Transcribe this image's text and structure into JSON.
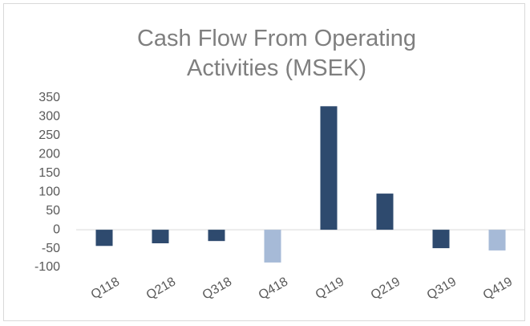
{
  "chart_data": {
    "type": "bar",
    "title": "Cash Flow From Operating Activities (MSEK)",
    "categories": [
      "Q118",
      "Q218",
      "Q318",
      "Q418",
      "Q119",
      "Q219",
      "Q319",
      "Q419"
    ],
    "values": [
      -43,
      -36,
      -30,
      -87,
      328,
      96,
      -49,
      -55
    ],
    "colors": [
      "#2e4a6e",
      "#2e4a6e",
      "#2e4a6e",
      "#a6bad7",
      "#2e4a6e",
      "#2e4a6e",
      "#2e4a6e",
      "#a6bad7"
    ],
    "ylim": [
      -100,
      350
    ],
    "yticks": [
      -100,
      -50,
      0,
      50,
      100,
      150,
      200,
      250,
      300,
      350
    ],
    "grid": false
  }
}
